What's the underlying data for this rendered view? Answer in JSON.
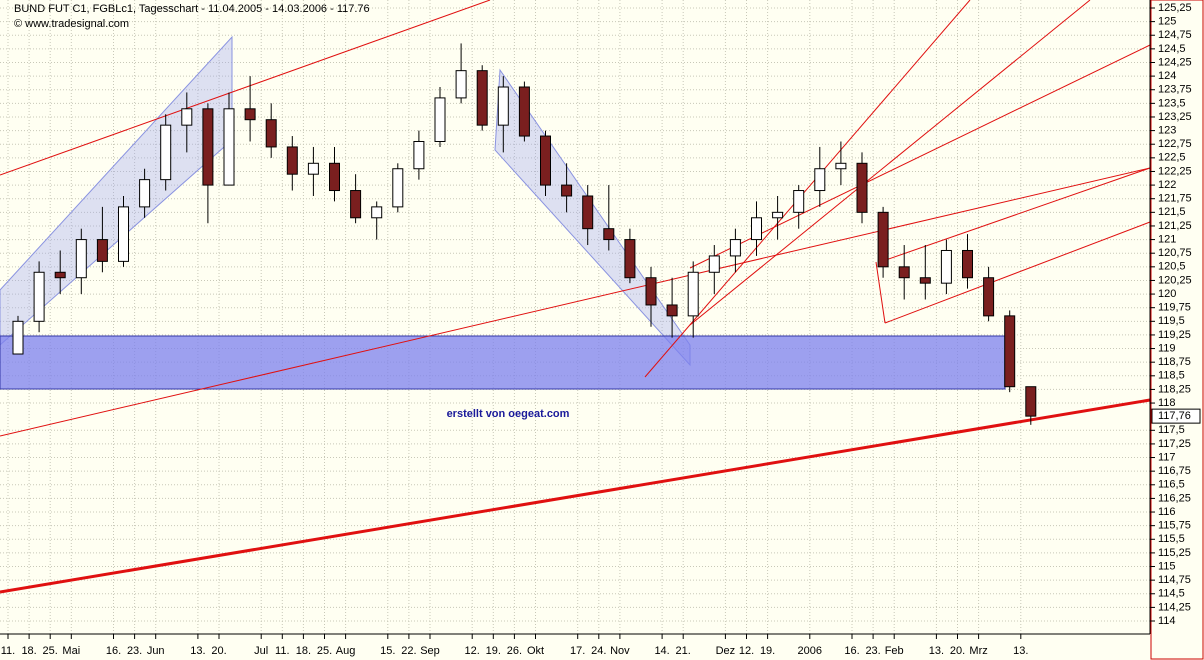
{
  "chart_data": {
    "type": "candlestick",
    "title": "BUND FUT C1, FGBLc1, Tagesschart - 11.04.2005 - 14.03.2006 - 117.76",
    "copyright": "© www.tradesignal.com",
    "annotation": "erstellt von oegeat.com",
    "categories": [
      "11.",
      "18.",
      "25.",
      "Mai",
      null,
      "16.",
      "23.",
      "Jun",
      null,
      "13.",
      "20.",
      null,
      "Jul",
      "11.",
      "18.",
      "25.",
      "Aug",
      null,
      "15.",
      "22.",
      "Sep",
      null,
      "12.",
      "19.",
      "26.",
      "Okt",
      null,
      "17.",
      "24.",
      "Nov",
      null,
      "14.",
      "21.",
      null,
      "Dez",
      "12.",
      "19.",
      null,
      "2006",
      null,
      "16.",
      "23.",
      "Feb",
      null,
      "13.",
      "20.",
      "Mrz",
      null,
      "13."
    ],
    "open": [
      118.9,
      119.5,
      120.4,
      120.3,
      121.0,
      120.6,
      121.6,
      122.1,
      123.1,
      123.4,
      122.0,
      123.4,
      123.2,
      122.7,
      122.2,
      122.4,
      121.9,
      121.4,
      121.6,
      122.3,
      122.8,
      123.6,
      124.1,
      123.1,
      123.8,
      122.9,
      122.0,
      121.8,
      121.2,
      121.0,
      120.3,
      119.8,
      119.6,
      120.4,
      120.7,
      121.0,
      121.4,
      121.5,
      121.9,
      122.3,
      122.4,
      121.5,
      120.5,
      120.3,
      120.2,
      120.8,
      120.3,
      119.6,
      118.3
    ],
    "high": [
      119.6,
      120.6,
      120.8,
      121.2,
      121.6,
      121.8,
      122.3,
      123.3,
      123.7,
      123.5,
      123.7,
      124.0,
      123.5,
      122.9,
      122.7,
      122.7,
      122.2,
      121.7,
      122.4,
      123.0,
      123.8,
      124.6,
      124.2,
      124.0,
      123.9,
      123.0,
      122.4,
      122.0,
      122.0,
      121.2,
      120.5,
      120.3,
      120.6,
      120.9,
      121.2,
      121.7,
      121.8,
      122.0,
      122.7,
      122.8,
      122.6,
      121.6,
      120.9,
      120.9,
      121.0,
      121.1,
      120.5,
      119.7,
      118.3
    ],
    "low": [
      118.9,
      119.3,
      120.0,
      120.0,
      120.4,
      120.5,
      121.4,
      121.9,
      122.6,
      121.3,
      122.0,
      122.8,
      122.5,
      121.9,
      121.8,
      121.7,
      121.3,
      121.0,
      121.5,
      122.1,
      122.7,
      123.5,
      123.0,
      122.6,
      122.8,
      121.8,
      121.5,
      120.9,
      120.8,
      120.2,
      119.4,
      119.2,
      119.2,
      120.0,
      120.4,
      120.7,
      121.0,
      121.2,
      121.6,
      122.0,
      121.3,
      120.3,
      119.9,
      119.9,
      120.0,
      120.1,
      119.5,
      118.2,
      117.6
    ],
    "close": [
      119.5,
      120.4,
      120.3,
      121.0,
      120.6,
      121.6,
      122.1,
      123.1,
      123.4,
      122.0,
      123.4,
      123.2,
      122.7,
      122.2,
      122.4,
      121.9,
      121.4,
      121.6,
      122.3,
      122.8,
      123.6,
      124.1,
      123.1,
      123.8,
      122.9,
      122.0,
      121.8,
      121.2,
      121.0,
      120.3,
      119.8,
      119.6,
      120.4,
      120.7,
      121.0,
      121.4,
      121.5,
      121.9,
      122.3,
      122.4,
      121.5,
      120.5,
      120.3,
      120.2,
      120.8,
      120.3,
      119.6,
      118.3,
      117.76
    ],
    "up_color": "#ffffff",
    "down_color": "#7a1f1f",
    "ylim": [
      113.78,
      125.36
    ],
    "yticks": [
      {
        "value": 114,
        "label": "114"
      },
      {
        "value": 114.25,
        "label": "114,25"
      },
      {
        "value": 114.5,
        "label": "114,5"
      },
      {
        "value": 114.75,
        "label": "114,75"
      },
      {
        "value": 115,
        "label": "115"
      },
      {
        "value": 115.25,
        "label": "115,25"
      },
      {
        "value": 115.5,
        "label": "115,5"
      },
      {
        "value": 115.75,
        "label": "115,75"
      },
      {
        "value": 116,
        "label": "116"
      },
      {
        "value": 116.25,
        "label": "116,25"
      },
      {
        "value": 116.5,
        "label": "116,5"
      },
      {
        "value": 116.75,
        "label": "116,75"
      },
      {
        "value": 117,
        "label": "117"
      },
      {
        "value": 117.25,
        "label": "117,25"
      },
      {
        "value": 117.5,
        "label": "117,5"
      },
      {
        "value": 118,
        "label": "118"
      },
      {
        "value": 118.25,
        "label": "118,25"
      },
      {
        "value": 118.5,
        "label": "118,5"
      },
      {
        "value": 118.75,
        "label": "118,75"
      },
      {
        "value": 119,
        "label": "119"
      },
      {
        "value": 119.25,
        "label": "119,25"
      },
      {
        "value": 119.5,
        "label": "119,5"
      },
      {
        "value": 119.75,
        "label": "119,75"
      },
      {
        "value": 120,
        "label": "120"
      },
      {
        "value": 120.25,
        "label": "120,25"
      },
      {
        "value": 120.5,
        "label": "120,5"
      },
      {
        "value": 120.75,
        "label": "120,75"
      },
      {
        "value": 121,
        "label": "121"
      },
      {
        "value": 121.25,
        "label": "121,25"
      },
      {
        "value": 121.5,
        "label": "121,5"
      },
      {
        "value": 121.75,
        "label": "121,75"
      },
      {
        "value": 122,
        "label": "122"
      },
      {
        "value": 122.25,
        "label": "122,25"
      },
      {
        "value": 122.5,
        "label": "122,5"
      },
      {
        "value": 122.75,
        "label": "122,75"
      },
      {
        "value": 123,
        "label": "123"
      },
      {
        "value": 123.25,
        "label": "123,25"
      },
      {
        "value": 123.5,
        "label": "123,5"
      },
      {
        "value": 123.75,
        "label": "123,75"
      },
      {
        "value": 124,
        "label": "124"
      },
      {
        "value": 124.25,
        "label": "124,25"
      },
      {
        "value": 124.5,
        "label": "124,5"
      },
      {
        "value": 124.75,
        "label": "124,75"
      },
      {
        "value": 125,
        "label": "125"
      },
      {
        "value": 125.25,
        "label": "125,25"
      }
    ],
    "last_price": {
      "value": 117.76,
      "label": "117,76"
    },
    "grid": true
  }
}
